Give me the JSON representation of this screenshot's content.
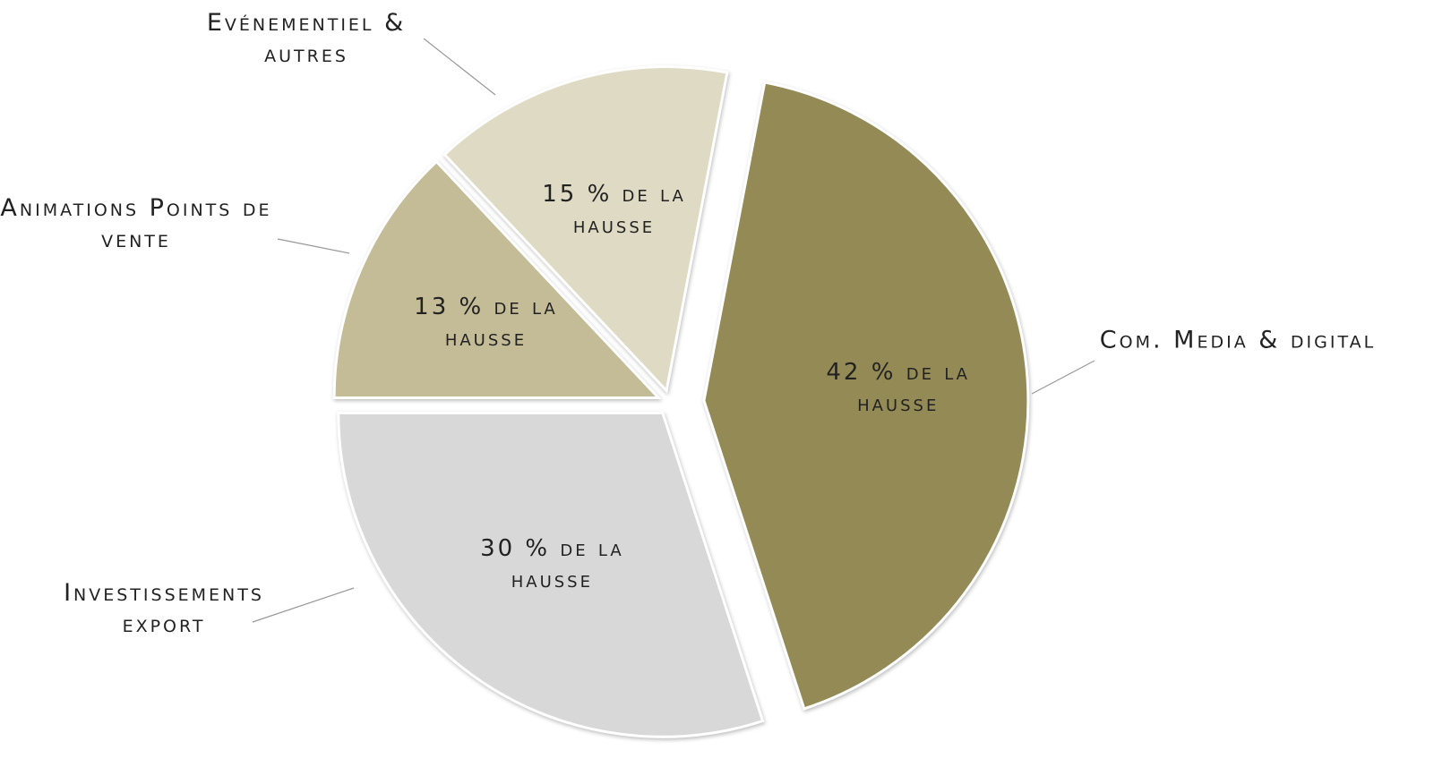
{
  "chart_data": {
    "type": "pie",
    "categories": [
      "Com. Media & digital",
      "Investissements export",
      "Animations Points de vente",
      "Evénementiel & autres"
    ],
    "values": [
      42,
      30,
      13,
      15
    ],
    "value_labels": [
      "42 % de la hausse",
      "30 % de la hausse",
      "13 % de la hausse",
      "15 % de la hausse"
    ],
    "colors": [
      "#938a55",
      "#d8d8d8",
      "#c4bb97",
      "#dedac3"
    ]
  }
}
